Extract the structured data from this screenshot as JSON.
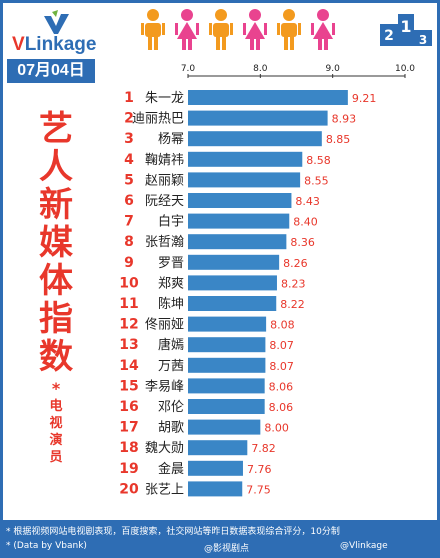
{
  "brand": {
    "logo_main": "V",
    "logo_rest": "Linkage"
  },
  "header": {
    "date": "07月04日"
  },
  "side_title": {
    "chars": [
      "艺",
      "人",
      "新",
      "媒",
      "体",
      "指",
      "数"
    ],
    "star": "*",
    "sub_chars": [
      "电",
      "视",
      "演",
      "员"
    ]
  },
  "footer": {
    "note": "* 根据视频网站电视剧表现，百度搜索，社交网站等昨日数据表现综合评分，10分制",
    "source": "* (Data by Vbank)",
    "weibo1": "@影视剧点",
    "weibo2": "@Vlinkage"
  },
  "colors": {
    "accent": "#2e6db4",
    "bar": "#3a86c6",
    "rank": "#e8372b",
    "value": "#e8372b",
    "people": [
      "#f39a1e",
      "#e9438f",
      "#f39a1e",
      "#e9438f",
      "#f39a1e",
      "#e9438f"
    ]
  },
  "chart_data": {
    "type": "bar",
    "orientation": "horizontal",
    "xlim": [
      7.0,
      10.0
    ],
    "xticks": [
      "7.0",
      "8.0",
      "9.0",
      "10.0"
    ],
    "ranks": [
      "1",
      "2",
      "3",
      "4",
      "5",
      "6",
      "7",
      "8",
      "9",
      "10",
      "11",
      "12",
      "13",
      "14",
      "15",
      "16",
      "17",
      "18",
      "19",
      "20"
    ],
    "categories": [
      "朱一龙",
      "迪丽热巴",
      "杨幂",
      "鞠婧祎",
      "赵丽颖",
      "阮经天",
      "白宇",
      "张哲瀚",
      "罗晋",
      "郑爽",
      "陈坤",
      "佟丽娅",
      "唐嫣",
      "万茜",
      "李易峰",
      "邓伦",
      "胡歌",
      "魏大勋",
      "金晨",
      "张艺上"
    ],
    "values": [
      9.21,
      8.93,
      8.85,
      8.58,
      8.55,
      8.43,
      8.4,
      8.36,
      8.26,
      8.23,
      8.22,
      8.08,
      8.07,
      8.07,
      8.06,
      8.06,
      8.0,
      7.82,
      7.76,
      7.75
    ],
    "value_labels": [
      "9.21",
      "8.93",
      "8.85",
      "8.58",
      "8.55",
      "8.43",
      "8.40",
      "8.36",
      "8.26",
      "8.23",
      "8.22",
      "8.08",
      "8.07",
      "8.07",
      "8.06",
      "8.06",
      "8.00",
      "7.82",
      "7.76",
      "7.75"
    ]
  }
}
